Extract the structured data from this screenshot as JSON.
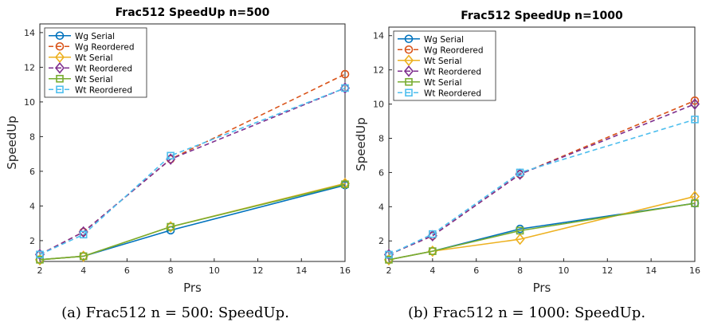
{
  "chart_data": [
    {
      "type": "line",
      "title": "Frac512 SpeedUp n=500",
      "xlabel": "Prs",
      "ylabel": "SpeedUp",
      "xlim": [
        2,
        16
      ],
      "ylim": [
        0.8,
        14.5
      ],
      "xticks": [
        2,
        4,
        6,
        8,
        10,
        12,
        14,
        16
      ],
      "yticks": [
        2,
        4,
        6,
        8,
        10,
        12,
        14
      ],
      "x": [
        2,
        4,
        8,
        16
      ],
      "grid": false,
      "legend_position": "top-left",
      "caption": "(a) Frac512 n = 500: SpeedUp.",
      "series": [
        {
          "name": "Wg Serial",
          "values": [
            0.9,
            1.1,
            2.6,
            5.2
          ],
          "color": "#0072BD",
          "dash": "solid",
          "marker": "circle"
        },
        {
          "name": "Wg Reordered",
          "values": [
            1.2,
            2.5,
            6.7,
            11.6
          ],
          "color": "#D95319",
          "dash": "dashed",
          "marker": "circle"
        },
        {
          "name": "Wt Serial",
          "values": [
            0.9,
            1.1,
            2.8,
            5.3
          ],
          "color": "#EDB120",
          "dash": "solid",
          "marker": "diamond"
        },
        {
          "name": "Wt Reordered",
          "values": [
            1.2,
            2.5,
            6.7,
            10.8
          ],
          "color": "#7E2F8E",
          "dash": "dashed",
          "marker": "diamond"
        },
        {
          "name": "Wt Serial",
          "values": [
            0.9,
            1.1,
            2.8,
            5.25
          ],
          "color": "#77AC30",
          "dash": "solid",
          "marker": "square"
        },
        {
          "name": "Wt Reordered",
          "values": [
            1.2,
            2.35,
            6.9,
            10.8
          ],
          "color": "#4DBEEE",
          "dash": "dashed",
          "marker": "square"
        }
      ]
    },
    {
      "type": "line",
      "title": "Frac512 SpeedUp n=1000",
      "xlabel": "Prs",
      "ylabel": "SpeedUp",
      "xlim": [
        2,
        16
      ],
      "ylim": [
        0.8,
        14.5
      ],
      "xticks": [
        2,
        4,
        6,
        8,
        10,
        12,
        14,
        16
      ],
      "yticks": [
        2,
        4,
        6,
        8,
        10,
        12,
        14
      ],
      "x": [
        2,
        4,
        8,
        16
      ],
      "grid": false,
      "legend_position": "top-left",
      "caption": "(b) Frac512 n = 1000: SpeedUp.",
      "series": [
        {
          "name": "Wg Serial",
          "values": [
            0.9,
            1.4,
            2.7,
            4.2
          ],
          "color": "#0072BD",
          "dash": "solid",
          "marker": "circle"
        },
        {
          "name": "Wg Reordered",
          "values": [
            1.2,
            2.3,
            5.9,
            10.2
          ],
          "color": "#D95319",
          "dash": "dashed",
          "marker": "circle"
        },
        {
          "name": "Wt Serial",
          "values": [
            0.9,
            1.4,
            2.1,
            4.6
          ],
          "color": "#EDB120",
          "dash": "solid",
          "marker": "diamond"
        },
        {
          "name": "Wt Reordered",
          "values": [
            1.2,
            2.3,
            5.9,
            10.0
          ],
          "color": "#7E2F8E",
          "dash": "dashed",
          "marker": "diamond"
        },
        {
          "name": "Wt Serial",
          "values": [
            0.9,
            1.4,
            2.6,
            4.2
          ],
          "color": "#77AC30",
          "dash": "solid",
          "marker": "square"
        },
        {
          "name": "Wt Reordered",
          "values": [
            1.2,
            2.4,
            6.0,
            9.1
          ],
          "color": "#4DBEEE",
          "dash": "dashed",
          "marker": "square"
        }
      ]
    }
  ]
}
